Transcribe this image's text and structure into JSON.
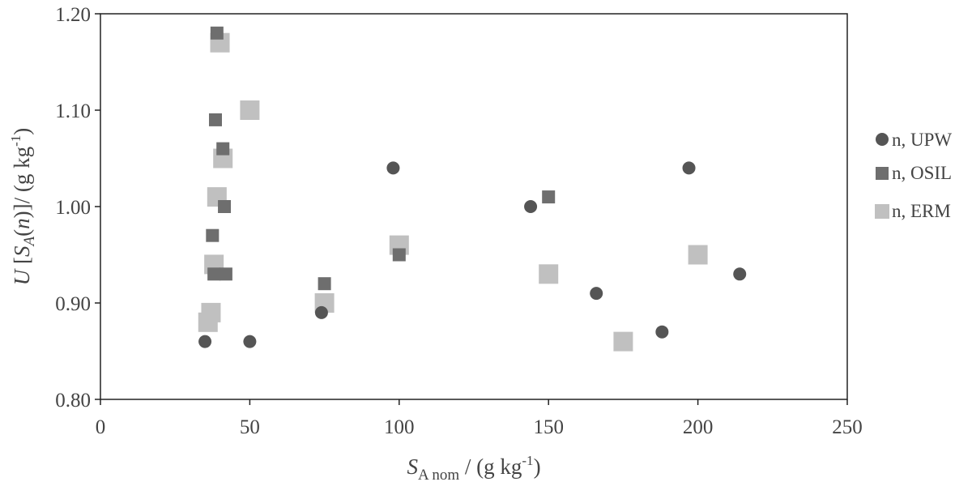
{
  "chart_data": {
    "type": "scatter",
    "xlabel": {
      "main": "S",
      "sub": "A nom",
      "rest": " / (g kg",
      "sup": "-1",
      "close": ")"
    },
    "ylabel": {
      "u": "U",
      "lb": " [",
      "s": "S",
      "a": "A",
      "n_open": "(",
      "n": "n",
      "n_close": ")]/ (g kg",
      "sup": "-1",
      "close": ")"
    },
    "xlim": [
      0,
      250
    ],
    "ylim": [
      0.8,
      1.2
    ],
    "x_ticks": [
      "0",
      "50",
      "100",
      "150",
      "200",
      "250"
    ],
    "x_tick_values": [
      0,
      50,
      100,
      150,
      200,
      250
    ],
    "y_ticks": [
      "0.80",
      "0.90",
      "1.00",
      "1.10",
      "1.20"
    ],
    "y_tick_values": [
      0.8,
      0.9,
      1.0,
      1.1,
      1.2
    ],
    "grid": false,
    "legend_position": "right",
    "series": [
      {
        "name": "n, UPW",
        "marker": "circle",
        "color": "#555555",
        "points": [
          [
            35,
            0.86
          ],
          [
            50,
            0.86
          ],
          [
            74,
            0.89
          ],
          [
            98,
            1.04
          ],
          [
            144,
            1.0
          ],
          [
            166,
            0.91
          ],
          [
            188,
            0.87
          ],
          [
            197,
            1.04
          ],
          [
            214,
            0.93
          ]
        ]
      },
      {
        "name": "n, OSIL",
        "marker": "square",
        "color": "#6e6e6e",
        "points": [
          [
            39,
            1.18
          ],
          [
            38.5,
            1.09
          ],
          [
            41,
            1.06
          ],
          [
            41.5,
            1.0
          ],
          [
            37.5,
            0.97
          ],
          [
            42,
            0.93
          ],
          [
            38,
            0.93
          ],
          [
            75,
            0.92
          ],
          [
            100,
            0.95
          ],
          [
            150,
            1.01
          ]
        ]
      },
      {
        "name": "n, ERM",
        "marker": "square",
        "color": "#c0c0c0",
        "points": [
          [
            40,
            1.17
          ],
          [
            50,
            1.1
          ],
          [
            41,
            1.05
          ],
          [
            39,
            1.01
          ],
          [
            38,
            0.94
          ],
          [
            37,
            0.89
          ],
          [
            36,
            0.88
          ],
          [
            75,
            0.9
          ],
          [
            100,
            0.96
          ],
          [
            150,
            0.93
          ],
          [
            175,
            0.86
          ],
          [
            200,
            0.95
          ]
        ]
      }
    ]
  }
}
